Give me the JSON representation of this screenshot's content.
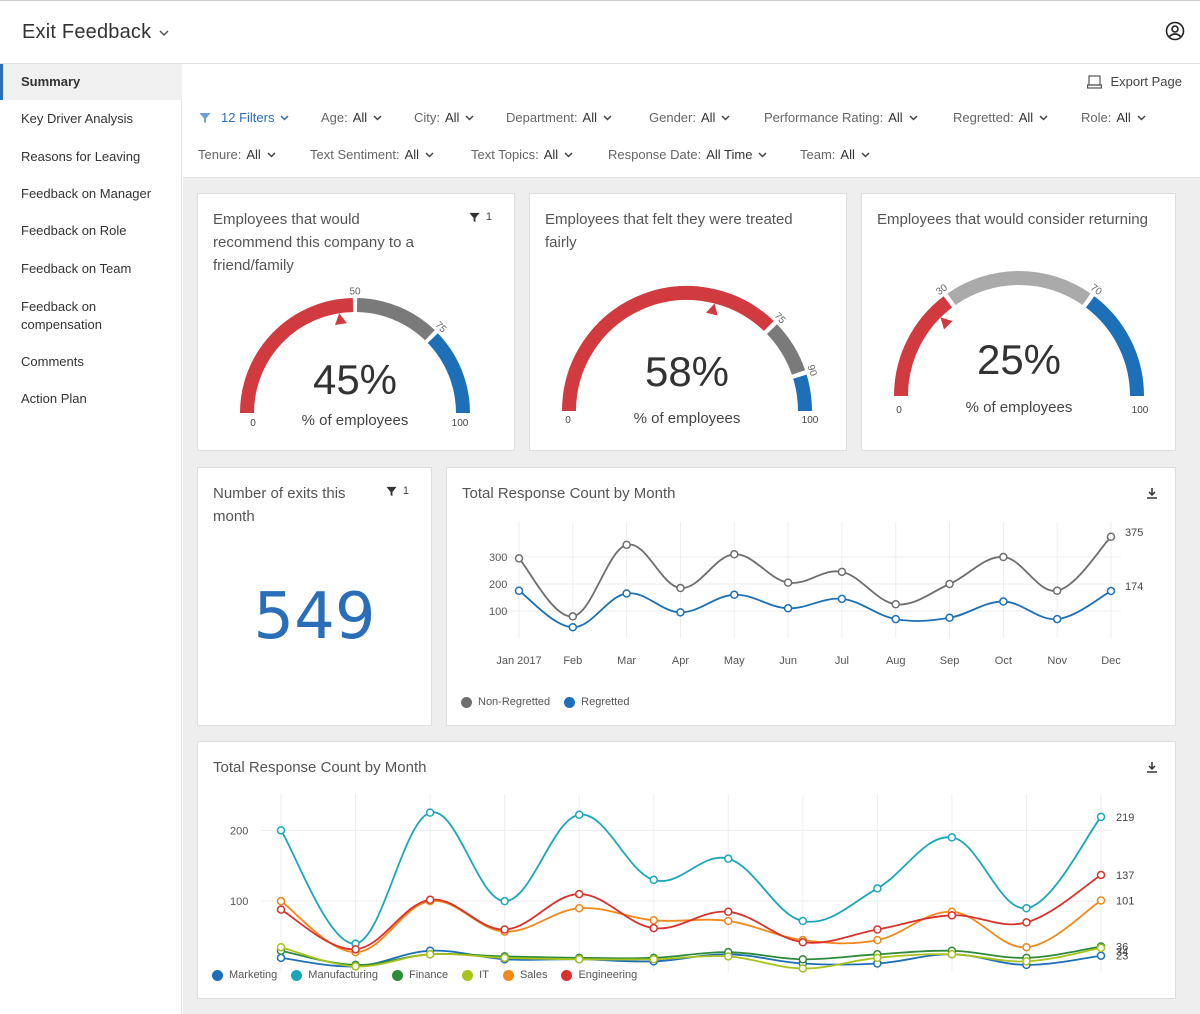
{
  "app": {
    "title": "Exit Feedback"
  },
  "sidebar": {
    "items": [
      {
        "label": "Summary",
        "active": true
      },
      {
        "label": "Key Driver Analysis"
      },
      {
        "label": "Reasons for Leaving"
      },
      {
        "label": "Feedback on Manager"
      },
      {
        "label": "Feedback on Role"
      },
      {
        "label": "Feedback on Team"
      },
      {
        "label_line1": "Feedback on",
        "label_line2": "compensation"
      },
      {
        "label": "Comments"
      },
      {
        "label": "Action Plan"
      }
    ]
  },
  "toolbar": {
    "export_label": "Export Page"
  },
  "filters": {
    "count_label": "12 Filters",
    "row1": [
      {
        "name": "Age:",
        "value": "All"
      },
      {
        "name": "City:",
        "value": "All"
      },
      {
        "name": "Department:",
        "value": "All"
      },
      {
        "name": "Gender:",
        "value": "All"
      },
      {
        "name": "Performance Rating:",
        "value": "All"
      },
      {
        "name": "Regretted:",
        "value": "All"
      },
      {
        "name": "Role:",
        "value": "All"
      }
    ],
    "row2": [
      {
        "name": "Tenure:",
        "value": "All"
      },
      {
        "name": "Text Sentiment:",
        "value": "All"
      },
      {
        "name": "Text Topics:",
        "value": "All"
      },
      {
        "name": "Response Date:",
        "value": "All Time"
      },
      {
        "name": "Team:",
        "value": "All"
      }
    ]
  },
  "gauges": [
    {
      "title": [
        "Employees that would",
        "recommend this company to a",
        "friend/family"
      ],
      "filter_count": "1",
      "value": 45,
      "value_label": "45%",
      "caption": "% of employees",
      "min_label": "0",
      "max_label": "100",
      "thresholds": [
        50,
        75
      ],
      "threshold_labels": [
        "50",
        "75"
      ]
    },
    {
      "title": [
        "Employees that felt they were treated",
        "fairly"
      ],
      "value": 58,
      "value_label": "58%",
      "caption": "% of employees",
      "min_label": "0",
      "max_label": "100",
      "thresholds": [
        75,
        90
      ],
      "threshold_labels": [
        "75",
        "90"
      ]
    },
    {
      "title": [
        "Employees that would consider returning"
      ],
      "value": 25,
      "value_label": "25%",
      "caption": "% of employees",
      "min_label": "0",
      "max_label": "100",
      "thresholds": [
        30,
        70
      ],
      "threshold_labels": [
        "30",
        "70"
      ]
    }
  ],
  "exits": {
    "title_line1": "Number of exits this",
    "title_line2": "month",
    "filter_count": "1",
    "value": "549"
  },
  "colors": {
    "red": "#d13a3f",
    "gray": "#7a7a7a",
    "lightgray": "#aaaaaa",
    "blue": "#1d70b8",
    "accent": "#2a6db8"
  },
  "chart_data": [
    {
      "type": "line",
      "title": "Total Response Count by Month",
      "categories": [
        "Jan 2017",
        "Feb",
        "Mar",
        "Apr",
        "May",
        "Jun",
        "Jul",
        "Aug",
        "Sep",
        "Oct",
        "Nov",
        "Dec"
      ],
      "yticks": [
        100,
        200,
        300
      ],
      "ylim": [
        0,
        400
      ],
      "series": [
        {
          "name": "Non-Regretted",
          "color": "#6e6e6e",
          "values": [
            295,
            80,
            345,
            185,
            310,
            205,
            245,
            125,
            200,
            300,
            175,
            375
          ],
          "end_label": "375"
        },
        {
          "name": "Regretted",
          "color": "#1d70b8",
          "values": [
            175,
            40,
            165,
            95,
            160,
            110,
            145,
            70,
            75,
            135,
            70,
            174
          ],
          "end_label": "174"
        }
      ],
      "grid": true,
      "legend": "bottom-left"
    },
    {
      "type": "line",
      "title": "Total Response Count by Month",
      "categories": [
        "Jan 2017",
        "Feb",
        "Mar",
        "Apr",
        "May",
        "Jun",
        "Jul",
        "Aug",
        "Sep",
        "Oct",
        "Nov",
        "Dec"
      ],
      "yticks": [
        100,
        200
      ],
      "ylim": [
        0,
        240
      ],
      "series": [
        {
          "name": "Marketing",
          "color": "#1d70b8",
          "values": [
            20,
            8,
            30,
            18,
            18,
            15,
            25,
            12,
            12,
            25,
            10,
            23
          ],
          "end_label": "23"
        },
        {
          "name": "Manufacturing",
          "color": "#1aa8b8",
          "values": [
            200,
            40,
            225,
            100,
            222,
            130,
            160,
            72,
            118,
            190,
            90,
            219
          ],
          "end_label": "219"
        },
        {
          "name": "Finance",
          "color": "#2e8b3a",
          "values": [
            30,
            10,
            25,
            22,
            20,
            20,
            28,
            18,
            25,
            30,
            20,
            36
          ],
          "end_label": "36"
        },
        {
          "name": "IT",
          "color": "#a9c21d",
          "values": [
            35,
            8,
            25,
            20,
            18,
            18,
            22,
            5,
            20,
            25,
            15,
            34
          ],
          "end_label": "34"
        },
        {
          "name": "Sales",
          "color": "#f0891a",
          "values": [
            100,
            28,
            100,
            57,
            90,
            73,
            72,
            45,
            45,
            85,
            35,
            101
          ],
          "end_label": "101"
        },
        {
          "name": "Engineering",
          "color": "#d9322c",
          "values": [
            88,
            32,
            102,
            60,
            110,
            62,
            85,
            42,
            60,
            80,
            70,
            137
          ],
          "end_label": "137"
        }
      ],
      "grid": true,
      "legend": "bottom-left"
    }
  ]
}
